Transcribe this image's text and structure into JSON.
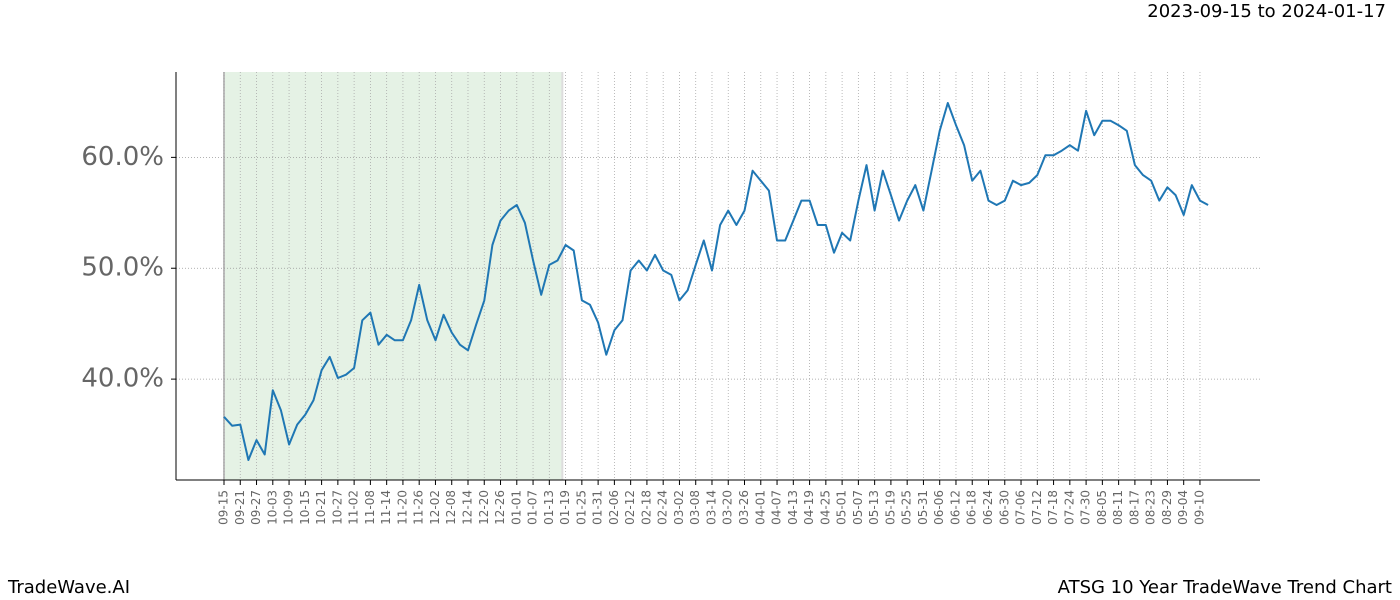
{
  "chart_data": {
    "type": "line",
    "title": "ATSG 10 Year TradeWave Trend Chart",
    "date_range": "2023-09-15 to 2024-01-17",
    "source": "TradeWave.AI",
    "color": "#1f77b4",
    "grid": true,
    "categories": [
      "09-15",
      null,
      "09-21",
      null,
      "09-27",
      null,
      "10-03",
      null,
      "10-09",
      null,
      "10-15",
      null,
      "10-21",
      null,
      "10-27",
      null,
      "11-02",
      null,
      "11-08",
      null,
      "11-14",
      null,
      "11-20",
      null,
      "11-26",
      null,
      "12-02",
      null,
      "12-08",
      null,
      "12-14",
      null,
      "12-20",
      null,
      "12-26",
      null,
      "01-01",
      null,
      "01-07",
      null,
      "01-13",
      null,
      "01-19",
      null,
      "01-25",
      null,
      "01-31",
      null,
      "02-06",
      null,
      "02-12",
      null,
      "02-18",
      null,
      "02-24",
      null,
      "03-02",
      null,
      "03-08",
      null,
      "03-14",
      null,
      "03-20",
      null,
      "03-26",
      null,
      "04-01",
      null,
      "04-07",
      null,
      "04-13",
      null,
      "04-19",
      null,
      "04-25",
      null,
      "05-01",
      null,
      "05-07",
      null,
      "05-13",
      null,
      "05-19",
      null,
      "05-25",
      null,
      "05-31",
      null,
      "06-06",
      null,
      "06-12",
      null,
      "06-18",
      null,
      "06-24",
      null,
      "06-30",
      null,
      "07-06",
      null,
      "07-12",
      null,
      "07-18",
      null,
      "07-24",
      null,
      "07-30",
      null,
      "08-05",
      null,
      "08-11",
      null,
      "08-17",
      null,
      "08-23",
      null,
      "08-29",
      null,
      "09-04",
      null,
      "09-10",
      null
    ],
    "values": [
      36.6,
      35.8,
      35.9,
      32.7,
      34.5,
      33.2,
      39.0,
      37.2,
      34.1,
      35.9,
      36.8,
      38.1,
      40.8,
      42.0,
      40.1,
      40.4,
      41.0,
      45.3,
      46.0,
      43.1,
      44.0,
      43.5,
      43.5,
      45.3,
      48.5,
      45.3,
      43.5,
      45.8,
      44.2,
      43.1,
      42.6,
      44.9,
      47.1,
      52.1,
      54.3,
      55.2,
      55.7,
      54.1,
      50.7,
      47.6,
      50.3,
      50.7,
      52.1,
      51.6,
      47.1,
      46.7,
      45.1,
      42.2,
      44.4,
      45.3,
      49.8,
      50.7,
      49.8,
      51.2,
      49.8,
      49.4,
      47.1,
      48.0,
      50.3,
      52.5,
      49.8,
      53.9,
      55.2,
      53.9,
      55.2,
      58.8,
      57.9,
      57.0,
      52.5,
      52.5,
      54.3,
      56.1,
      56.1,
      53.9,
      53.9,
      51.4,
      53.2,
      52.5,
      56.1,
      59.3,
      55.2,
      58.8,
      56.6,
      54.3,
      56.1,
      57.5,
      55.2,
      58.8,
      62.4,
      64.9,
      62.9,
      61.1,
      57.9,
      58.8,
      56.1,
      55.7,
      56.1,
      57.9,
      57.5,
      57.7,
      58.4,
      60.2,
      60.2,
      60.6,
      61.1,
      60.6,
      64.2,
      62.0,
      63.3,
      63.3,
      62.9,
      62.4,
      59.3,
      58.4,
      57.9,
      56.1,
      57.3,
      56.6,
      54.8,
      57.5,
      56.1,
      55.7
    ],
    "ylim": [
      30.9,
      67.7
    ],
    "yticks": [
      {
        "value": 40,
        "label": "40.0%"
      },
      {
        "value": 50,
        "label": "50.0%"
      },
      {
        "value": 60,
        "label": "60.0%"
      }
    ]
  }
}
